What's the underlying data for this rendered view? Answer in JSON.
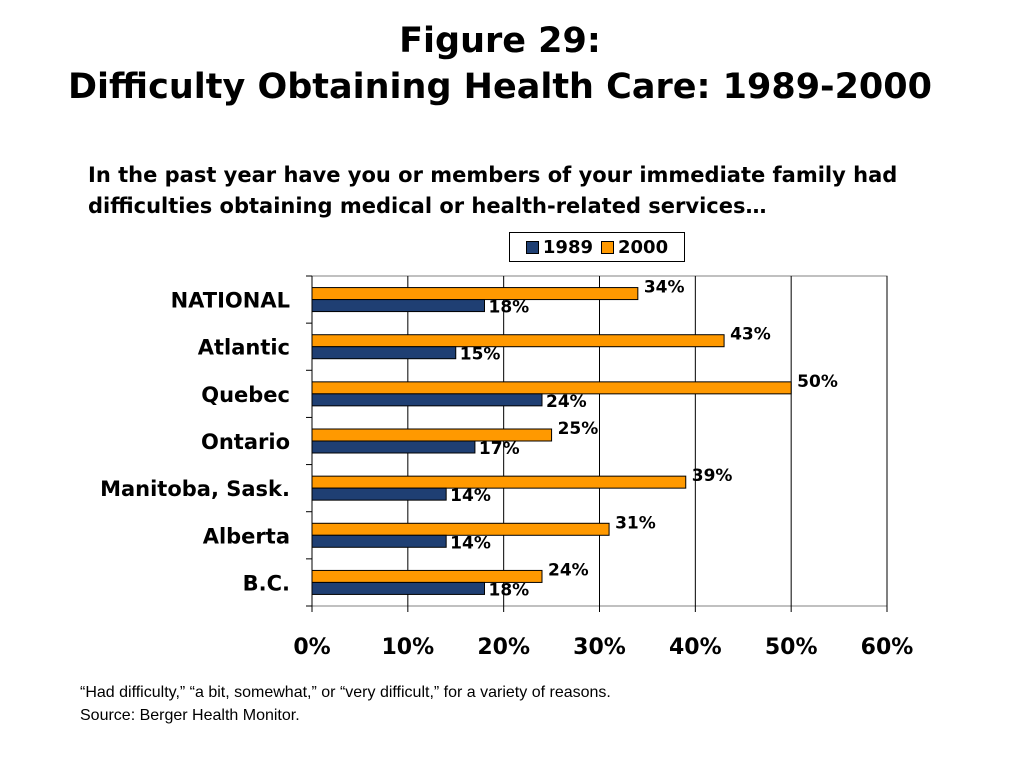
{
  "title": {
    "line1": "Figure 29:",
    "line2": "Difficulty Obtaining Health Care: 1989-2000"
  },
  "question": {
    "line1": "In the past year have you or members of your immediate family had",
    "line2": "difficulties obtaining medical or health-related services…"
  },
  "legend": {
    "items": [
      {
        "label": "1989",
        "color": "#1f3f73"
      },
      {
        "label": "2000",
        "color": "#ff9900"
      }
    ]
  },
  "chart_data": {
    "type": "bar",
    "orientation": "horizontal",
    "categories": [
      "NATIONAL",
      "Atlantic",
      "Quebec",
      "Ontario",
      "Manitoba, Sask.",
      "Alberta",
      "B.C."
    ],
    "series": [
      {
        "name": "2000",
        "color": "#ff9900",
        "values": [
          34,
          43,
          50,
          25,
          39,
          31,
          24
        ],
        "labels": [
          "34%",
          "43%",
          "50%",
          "25%",
          "39%",
          "31%",
          "24%"
        ]
      },
      {
        "name": "1989",
        "color": "#1f3f73",
        "values": [
          18,
          15,
          24,
          17,
          14,
          14,
          18
        ],
        "labels": [
          "18%",
          "15%",
          "24%",
          "17%",
          "14%",
          "14%",
          "18%"
        ]
      }
    ],
    "xlim": [
      0,
      60
    ],
    "xticks": [
      "0%",
      "10%",
      "20%",
      "30%",
      "40%",
      "50%",
      "60%"
    ],
    "grid": true,
    "legend_position": "top-right"
  },
  "footnote": {
    "line1": "“Had difficulty,” “a bit, somewhat,” or “very difficult,” for a variety of reasons.",
    "line2": "Source: Berger Health Monitor."
  }
}
